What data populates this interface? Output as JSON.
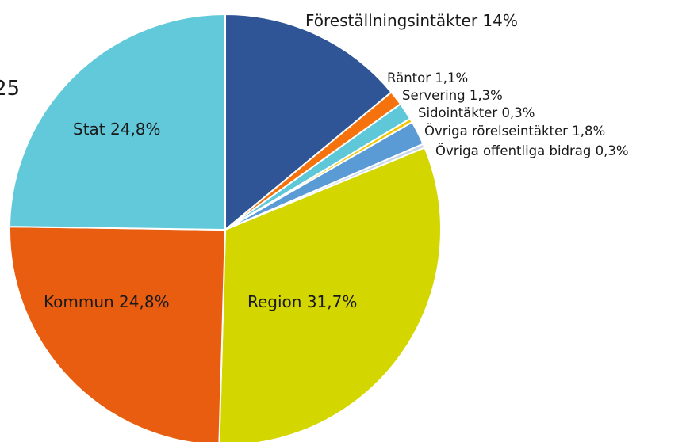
{
  "chart_data": {
    "type": "pie",
    "title": "25",
    "categories": [
      "Föreställningsintäkter",
      "Räntor",
      "Servering",
      "Sidointäkter",
      "Övriga rörelseintäkter",
      "Övriga offentliga bidrag",
      "Region",
      "Kommun",
      "Stat"
    ],
    "values": [
      14,
      1.1,
      1.3,
      0.3,
      1.8,
      0.3,
      31.7,
      24.8,
      24.8
    ],
    "value_labels": [
      "14%",
      "1,1%",
      "1,3%",
      "0,3%",
      "1,8%",
      "0,3%",
      "31,7%",
      "24,8%",
      "24,8%"
    ],
    "colors": [
      "#2f5597",
      "#f5720c",
      "#5fc8d8",
      "#f2c500",
      "#5b9bd5",
      "#c9d6ea",
      "#d4d600",
      "#e85d10",
      "#62c9da"
    ]
  }
}
